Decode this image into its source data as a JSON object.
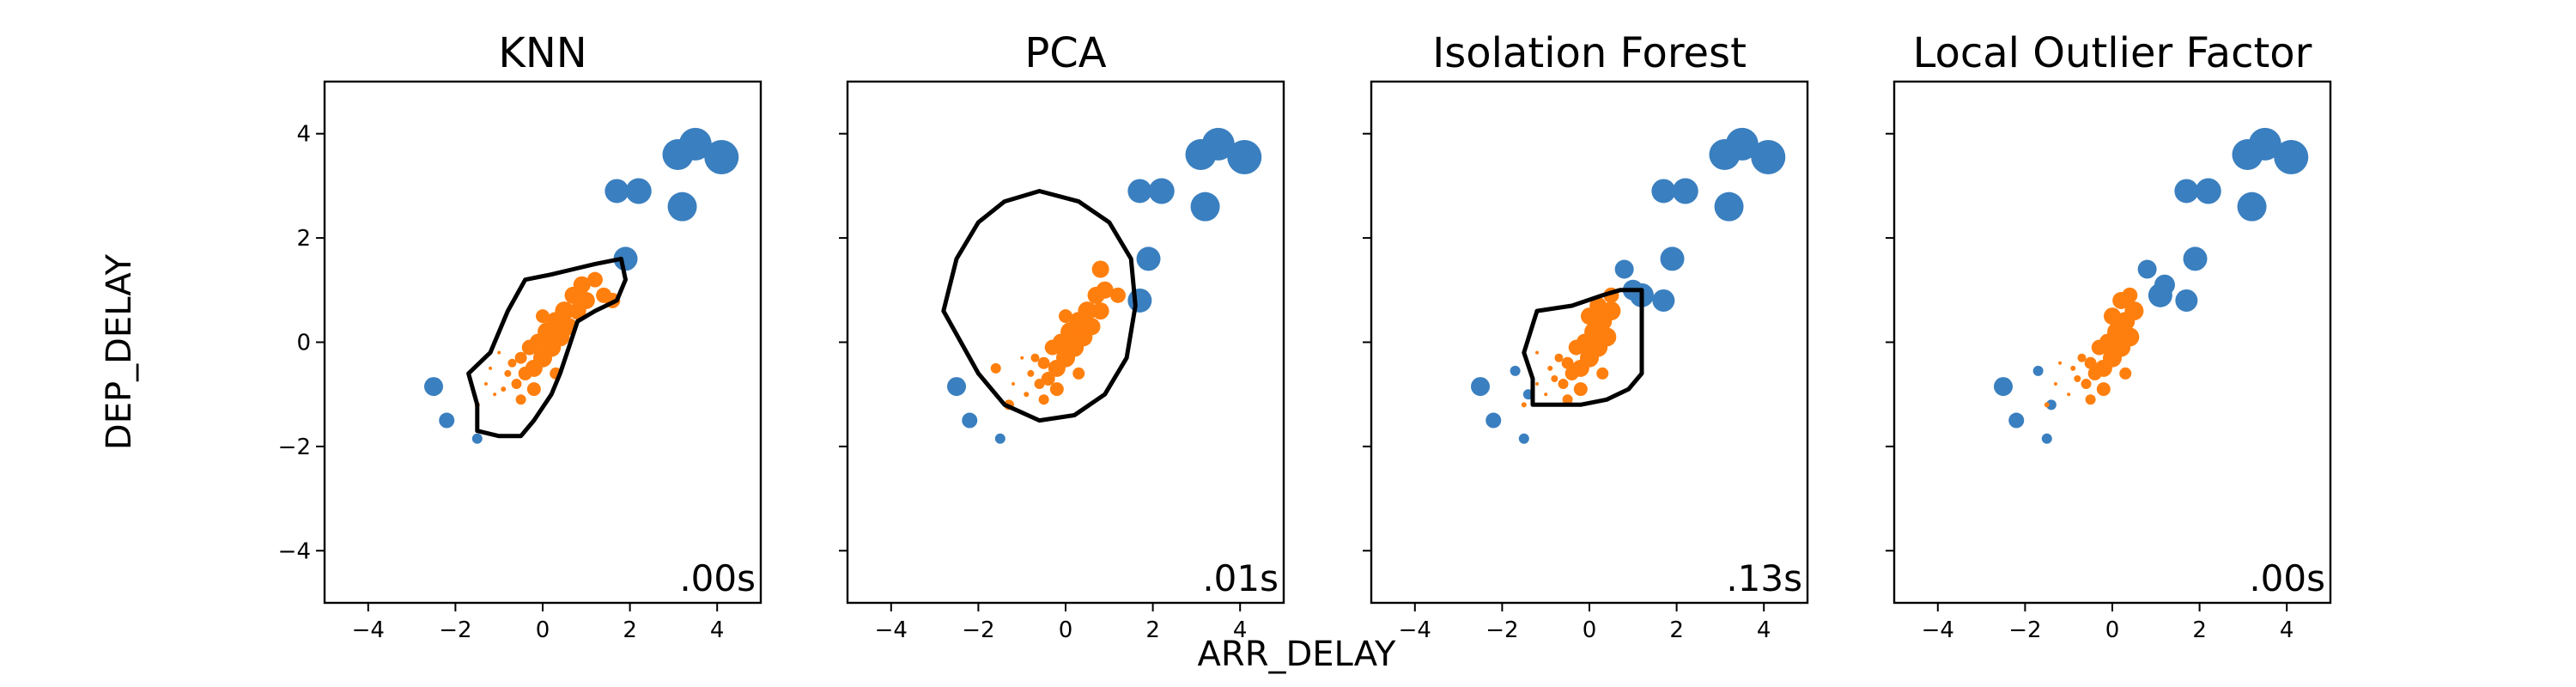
{
  "figure": {
    "xlabel": "ARR_DELAY",
    "ylabel": "DEP_DELAY"
  },
  "colors": {
    "outlier": "#3a7fbf",
    "inlier": "#ff7f0e",
    "contour": "#000000"
  },
  "chart_data": [
    {
      "type": "scatter",
      "title": "KNN",
      "time": ".00s",
      "xlim": [
        -5,
        5
      ],
      "ylim": [
        -5,
        5
      ],
      "xticks": [
        "−4",
        "−2",
        "0",
        "2",
        "4"
      ],
      "yticks": [
        "4",
        "2",
        "0",
        "−2",
        "−4"
      ],
      "show_ytick_labels": true,
      "inlier_points": [
        [
          -1.5,
          -1.2,
          3
        ],
        [
          -1.3,
          -0.8,
          2
        ],
        [
          -1.2,
          -0.5,
          2
        ],
        [
          -1.1,
          -1.0,
          2
        ],
        [
          -1.0,
          -0.2,
          2
        ],
        [
          -0.9,
          -0.9,
          3
        ],
        [
          -0.8,
          -0.6,
          4
        ],
        [
          -0.7,
          -0.4,
          5
        ],
        [
          -0.6,
          -0.8,
          6
        ],
        [
          -0.5,
          -0.3,
          7
        ],
        [
          -0.4,
          -0.6,
          8
        ],
        [
          -0.3,
          -0.1,
          9
        ],
        [
          -0.2,
          -0.5,
          10
        ],
        [
          -0.1,
          0.0,
          10
        ],
        [
          0.0,
          -0.3,
          11
        ],
        [
          0.1,
          0.2,
          11
        ],
        [
          0.2,
          -0.1,
          11
        ],
        [
          0.3,
          0.4,
          11
        ],
        [
          0.4,
          0.1,
          11
        ],
        [
          0.5,
          0.6,
          11
        ],
        [
          0.6,
          0.3,
          10
        ],
        [
          0.7,
          0.9,
          10
        ],
        [
          0.8,
          0.6,
          10
        ],
        [
          0.9,
          1.1,
          10
        ],
        [
          1.0,
          0.8,
          10
        ],
        [
          1.2,
          1.2,
          9
        ],
        [
          1.4,
          0.9,
          9
        ],
        [
          1.6,
          0.8,
          9
        ],
        [
          -0.2,
          -0.9,
          8
        ],
        [
          0.0,
          0.5,
          8
        ],
        [
          -0.5,
          -1.1,
          6
        ],
        [
          0.3,
          -0.6,
          7
        ]
      ],
      "outlier_points": [
        [
          -2.5,
          -0.85,
          11
        ],
        [
          -2.2,
          -1.5,
          9
        ],
        [
          -1.5,
          -1.85,
          6
        ],
        [
          1.7,
          2.9,
          14
        ],
        [
          2.2,
          2.9,
          15
        ],
        [
          3.2,
          2.6,
          17
        ],
        [
          3.1,
          3.6,
          18
        ],
        [
          3.5,
          3.8,
          19
        ],
        [
          4.1,
          3.55,
          20
        ],
        [
          1.9,
          1.6,
          14
        ]
      ],
      "contour": [
        [
          -1.5,
          -1.2
        ],
        [
          -1.7,
          -0.6
        ],
        [
          -1.2,
          -0.2
        ],
        [
          -0.8,
          0.6
        ],
        [
          -0.4,
          1.2
        ],
        [
          0.2,
          1.3
        ],
        [
          0.7,
          1.4
        ],
        [
          1.2,
          1.5
        ],
        [
          1.8,
          1.6
        ],
        [
          1.9,
          1.2
        ],
        [
          1.7,
          0.8
        ],
        [
          1.2,
          0.6
        ],
        [
          0.8,
          0.4
        ],
        [
          0.6,
          -0.1
        ],
        [
          0.4,
          -0.6
        ],
        [
          0.2,
          -1.0
        ],
        [
          -0.2,
          -1.5
        ],
        [
          -0.5,
          -1.8
        ],
        [
          -1.0,
          -1.8
        ],
        [
          -1.5,
          -1.7
        ]
      ]
    },
    {
      "type": "scatter",
      "title": "PCA",
      "time": ".01s",
      "xlim": [
        -5,
        5
      ],
      "ylim": [
        -5,
        5
      ],
      "xticks": [
        "−4",
        "−2",
        "0",
        "2",
        "4"
      ],
      "yticks": [
        "4",
        "2",
        "0",
        "−2",
        "−4"
      ],
      "show_ytick_labels": false,
      "inlier_points": [
        [
          -1.6,
          -0.5,
          6
        ],
        [
          -1.3,
          -1.2,
          6
        ],
        [
          -1.2,
          -0.8,
          2
        ],
        [
          -1.0,
          -0.3,
          2
        ],
        [
          -0.9,
          -1.0,
          3
        ],
        [
          -0.8,
          -0.6,
          4
        ],
        [
          -0.7,
          -0.3,
          5
        ],
        [
          -0.6,
          -0.8,
          6
        ],
        [
          -0.5,
          -0.4,
          7
        ],
        [
          -0.4,
          -0.7,
          8
        ],
        [
          -0.3,
          -0.1,
          9
        ],
        [
          -0.2,
          -0.5,
          10
        ],
        [
          -0.1,
          0.0,
          10
        ],
        [
          0.0,
          -0.3,
          11
        ],
        [
          0.1,
          0.2,
          11
        ],
        [
          0.2,
          -0.1,
          11
        ],
        [
          0.3,
          0.4,
          11
        ],
        [
          0.4,
          0.1,
          11
        ],
        [
          0.5,
          0.6,
          11
        ],
        [
          0.6,
          0.3,
          10
        ],
        [
          0.7,
          0.9,
          10
        ],
        [
          0.8,
          0.6,
          10
        ],
        [
          0.9,
          1.0,
          10
        ],
        [
          0.8,
          1.4,
          10
        ],
        [
          1.2,
          0.9,
          9
        ],
        [
          -0.2,
          -0.9,
          8
        ],
        [
          0.0,
          0.5,
          8
        ],
        [
          -0.5,
          -1.1,
          6
        ],
        [
          0.3,
          -0.6,
          7
        ]
      ],
      "outlier_points": [
        [
          -2.5,
          -0.85,
          11
        ],
        [
          -2.2,
          -1.5,
          9
        ],
        [
          -1.5,
          -1.85,
          6
        ],
        [
          1.7,
          2.9,
          14
        ],
        [
          2.2,
          2.9,
          15
        ],
        [
          3.2,
          2.6,
          17
        ],
        [
          3.1,
          3.6,
          18
        ],
        [
          3.5,
          3.8,
          19
        ],
        [
          4.1,
          3.55,
          20
        ],
        [
          1.9,
          1.6,
          14
        ],
        [
          1.7,
          0.8,
          14
        ]
      ],
      "contour": [
        [
          -0.6,
          2.9
        ],
        [
          0.3,
          2.7
        ],
        [
          1.0,
          2.3
        ],
        [
          1.5,
          1.6
        ],
        [
          1.6,
          0.7
        ],
        [
          1.4,
          -0.3
        ],
        [
          0.9,
          -1.0
        ],
        [
          0.2,
          -1.4
        ],
        [
          -0.6,
          -1.5
        ],
        [
          -1.4,
          -1.2
        ],
        [
          -2.0,
          -0.6
        ],
        [
          -2.8,
          0.6
        ],
        [
          -2.5,
          1.6
        ],
        [
          -2.0,
          2.3
        ],
        [
          -1.4,
          2.7
        ]
      ]
    },
    {
      "type": "scatter",
      "title": "Isolation Forest",
      "time": ".13s",
      "xlim": [
        -5,
        5
      ],
      "ylim": [
        -5,
        5
      ],
      "xticks": [
        "−4",
        "−2",
        "0",
        "2",
        "4"
      ],
      "yticks": [
        "4",
        "2",
        "0",
        "−2",
        "−4"
      ],
      "show_ytick_labels": false,
      "inlier_points": [
        [
          -1.5,
          -1.2,
          3
        ],
        [
          -1.2,
          -0.8,
          2
        ],
        [
          -1.2,
          -0.2,
          2
        ],
        [
          -1.0,
          -1.0,
          2
        ],
        [
          -0.9,
          -0.5,
          3
        ],
        [
          -0.8,
          -0.7,
          4
        ],
        [
          -0.7,
          -0.3,
          5
        ],
        [
          -0.6,
          -0.8,
          6
        ],
        [
          -0.5,
          -0.4,
          7
        ],
        [
          -0.4,
          -0.6,
          8
        ],
        [
          -0.3,
          -0.1,
          9
        ],
        [
          -0.2,
          -0.5,
          10
        ],
        [
          -0.1,
          0.0,
          10
        ],
        [
          0.0,
          -0.3,
          11
        ],
        [
          0.1,
          0.2,
          11
        ],
        [
          0.2,
          -0.1,
          11
        ],
        [
          0.3,
          0.4,
          11
        ],
        [
          0.4,
          0.1,
          11
        ],
        [
          0.5,
          0.6,
          11
        ],
        [
          0.2,
          0.7,
          10
        ],
        [
          0.0,
          0.5,
          10
        ],
        [
          -0.2,
          -0.9,
          8
        ],
        [
          -0.5,
          -1.1,
          6
        ],
        [
          0.3,
          -0.6,
          7
        ],
        [
          0.5,
          0.9,
          9
        ]
      ],
      "outlier_points": [
        [
          -2.5,
          -0.85,
          11
        ],
        [
          -2.2,
          -1.5,
          9
        ],
        [
          -1.5,
          -1.85,
          6
        ],
        [
          -1.7,
          -0.55,
          6
        ],
        [
          -1.4,
          -1.0,
          6
        ],
        [
          1.7,
          2.9,
          14
        ],
        [
          2.2,
          2.9,
          15
        ],
        [
          3.2,
          2.6,
          17
        ],
        [
          3.1,
          3.6,
          18
        ],
        [
          3.5,
          3.8,
          19
        ],
        [
          4.1,
          3.55,
          20
        ],
        [
          1.9,
          1.6,
          14
        ],
        [
          0.8,
          1.4,
          11
        ],
        [
          1.2,
          0.9,
          14
        ],
        [
          1.7,
          0.8,
          13
        ],
        [
          1.0,
          1.0,
          12
        ]
      ],
      "contour": [
        [
          -1.3,
          -1.2
        ],
        [
          -1.3,
          -0.7
        ],
        [
          -1.5,
          -0.2
        ],
        [
          -1.2,
          0.6
        ],
        [
          -0.4,
          0.7
        ],
        [
          0.3,
          0.9
        ],
        [
          0.7,
          1.0
        ],
        [
          1.2,
          1.0
        ],
        [
          1.2,
          0.4
        ],
        [
          1.2,
          0.0
        ],
        [
          1.2,
          -0.6
        ],
        [
          0.9,
          -0.9
        ],
        [
          0.4,
          -1.1
        ],
        [
          -0.2,
          -1.2
        ],
        [
          -0.8,
          -1.2
        ]
      ]
    },
    {
      "type": "scatter",
      "title": "Local Outlier Factor",
      "time": ".00s",
      "xlim": [
        -5,
        5
      ],
      "ylim": [
        -5,
        5
      ],
      "xticks": [
        "−4",
        "−2",
        "0",
        "2",
        "4"
      ],
      "yticks": [
        "4",
        "2",
        "0",
        "−2",
        "−4"
      ],
      "show_ytick_labels": false,
      "inlier_points": [
        [
          -1.5,
          -1.2,
          3
        ],
        [
          -1.3,
          -0.8,
          2
        ],
        [
          -1.2,
          -0.4,
          2
        ],
        [
          -1.0,
          -1.0,
          2
        ],
        [
          -0.9,
          -0.5,
          3
        ],
        [
          -0.8,
          -0.7,
          4
        ],
        [
          -0.7,
          -0.3,
          5
        ],
        [
          -0.6,
          -0.8,
          6
        ],
        [
          -0.5,
          -0.4,
          7
        ],
        [
          -0.4,
          -0.6,
          8
        ],
        [
          -0.3,
          -0.1,
          9
        ],
        [
          -0.2,
          -0.5,
          10
        ],
        [
          -0.1,
          0.0,
          10
        ],
        [
          0.0,
          -0.3,
          11
        ],
        [
          0.1,
          0.2,
          11
        ],
        [
          0.2,
          -0.1,
          11
        ],
        [
          0.3,
          0.4,
          11
        ],
        [
          0.4,
          0.1,
          11
        ],
        [
          0.5,
          0.6,
          11
        ],
        [
          0.2,
          0.8,
          10
        ],
        [
          0.0,
          0.5,
          10
        ],
        [
          -0.2,
          -0.9,
          8
        ],
        [
          -0.5,
          -1.1,
          6
        ],
        [
          0.3,
          -0.6,
          7
        ],
        [
          0.4,
          0.9,
          9
        ]
      ],
      "outlier_points": [
        [
          -2.5,
          -0.85,
          11
        ],
        [
          -2.2,
          -1.5,
          9
        ],
        [
          -1.5,
          -1.85,
          6
        ],
        [
          -1.7,
          -0.55,
          6
        ],
        [
          -1.4,
          -1.2,
          6
        ],
        [
          1.7,
          2.9,
          14
        ],
        [
          2.2,
          2.9,
          15
        ],
        [
          3.2,
          2.6,
          17
        ],
        [
          3.1,
          3.6,
          18
        ],
        [
          3.5,
          3.8,
          19
        ],
        [
          4.1,
          3.55,
          20
        ],
        [
          1.9,
          1.6,
          14
        ],
        [
          0.8,
          1.4,
          11
        ],
        [
          1.1,
          0.9,
          14
        ],
        [
          1.7,
          0.8,
          13
        ],
        [
          1.2,
          1.1,
          12
        ]
      ],
      "contour": []
    }
  ]
}
